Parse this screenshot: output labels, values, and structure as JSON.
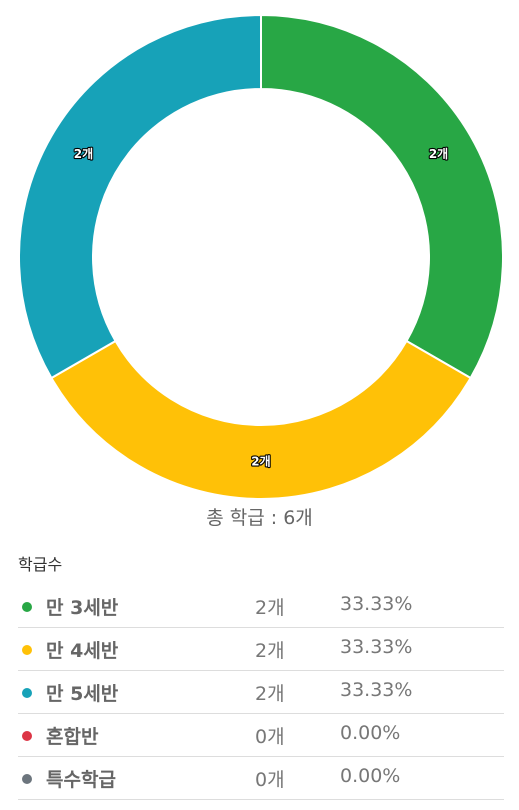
{
  "chart_data": {
    "type": "pie",
    "categories": [
      "만 3세반",
      "만 4세반",
      "만 5세반",
      "혼합반",
      "특수학급"
    ],
    "values": [
      2,
      2,
      2,
      0,
      0
    ],
    "value_labels": [
      "2개",
      "2개",
      "2개",
      "0개",
      "0개"
    ],
    "percent_labels": [
      "33.33%",
      "33.33%",
      "33.33%",
      "0.00%",
      "0.00%"
    ],
    "colors": [
      "#28a745",
      "#ffc107",
      "#17a2b8",
      "#dc3545",
      "#6c757d"
    ],
    "donut": true,
    "legend_position": "bottom"
  },
  "summary": {
    "total_label": "총 학급 : 6개"
  },
  "legend": {
    "title": "학급수"
  }
}
